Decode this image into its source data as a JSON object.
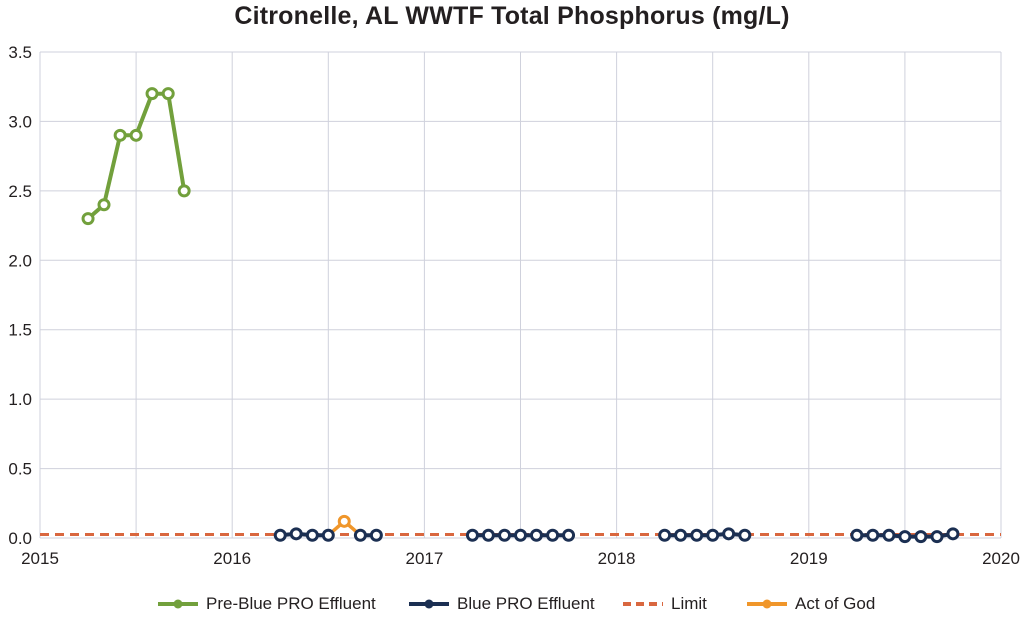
{
  "chart_data": {
    "type": "line",
    "title": "Citronelle, AL WWTF Total Phosphorus (mg/L)",
    "xlabel": "",
    "ylabel": "",
    "xlim": [
      2015,
      2020
    ],
    "ylim": [
      0,
      3.5
    ],
    "x_ticks": [
      "2015",
      "2016",
      "2017",
      "2018",
      "2019",
      "2020"
    ],
    "y_ticks": [
      "0.0",
      "0.5",
      "1.0",
      "1.5",
      "2.0",
      "2.5",
      "3.0",
      "3.5"
    ],
    "grid": true,
    "legend_position": "bottom",
    "series": [
      {
        "name": "Pre-Blue PRO Effluent",
        "color": "#72a03c",
        "style": "solid-line-with-hollow-markers",
        "x": [
          2015.25,
          2015.333,
          2015.417,
          2015.5,
          2015.583,
          2015.667,
          2015.75
        ],
        "y": [
          2.3,
          2.4,
          2.9,
          2.9,
          3.2,
          3.2,
          2.5
        ]
      },
      {
        "name": "Blue PRO Effluent",
        "color": "#1b2f52",
        "style": "solid-line-with-hollow-markers",
        "segments": [
          {
            "x": [
              2016.25,
              2016.333,
              2016.417,
              2016.5
            ],
            "y": [
              0.02,
              0.03,
              0.02,
              0.02
            ]
          },
          {
            "x": [
              2016.667,
              2016.75
            ],
            "y": [
              0.02,
              0.02
            ]
          },
          {
            "x": [
              2017.25,
              2017.333,
              2017.417,
              2017.5,
              2017.583,
              2017.667,
              2017.75
            ],
            "y": [
              0.02,
              0.02,
              0.02,
              0.02,
              0.02,
              0.02,
              0.02
            ]
          },
          {
            "x": [
              2018.25,
              2018.333,
              2018.417,
              2018.5,
              2018.583,
              2018.667
            ],
            "y": [
              0.02,
              0.02,
              0.02,
              0.02,
              0.03,
              0.02
            ]
          },
          {
            "x": [
              2019.25,
              2019.333,
              2019.417,
              2019.5,
              2019.583,
              2019.667,
              2019.75
            ],
            "y": [
              0.02,
              0.02,
              0.02,
              0.01,
              0.01,
              0.01,
              0.03
            ]
          }
        ]
      },
      {
        "name": "Limit",
        "color": "#d9673f",
        "style": "dashed",
        "x": [
          2015,
          2020
        ],
        "y": [
          0.025,
          0.025
        ]
      },
      {
        "name": "Act of God",
        "color": "#f0962a",
        "style": "solid-line-with-hollow-markers",
        "x": [
          2016.5,
          2016.583,
          2016.667
        ],
        "y": [
          0.02,
          0.12,
          0.02
        ]
      }
    ]
  }
}
